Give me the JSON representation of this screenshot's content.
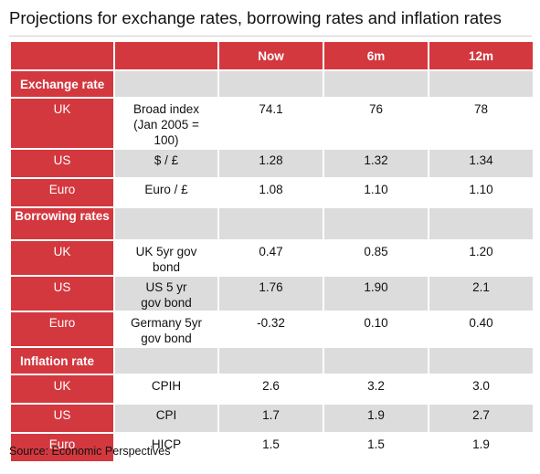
{
  "title": "Projections for exchange rates, borrowing rates and inflation rates",
  "columns": [
    "Now",
    "6m",
    "12m"
  ],
  "sections": [
    {
      "name": "Exchange rate",
      "rows": [
        {
          "country": "UK",
          "measure": "Broad index (Jan 2005 = 100)",
          "now": "74.1",
          "m6": "76",
          "m12": "78"
        },
        {
          "country": "US",
          "measure": "$ / £",
          "now": "1.28",
          "m6": "1.32",
          "m12": "1.34"
        },
        {
          "country": "Euro",
          "measure": "Euro / £",
          "now": "1.08",
          "m6": "1.10",
          "m12": "1.10"
        }
      ]
    },
    {
      "name": "Borrowing rates",
      "rows": [
        {
          "country": "UK",
          "measure": "UK 5yr gov bond",
          "now": "0.47",
          "m6": "0.85",
          "m12": "1.20"
        },
        {
          "country": "US",
          "measure": "US 5 yr gov bond",
          "now": "1.76",
          "m6": "1.90",
          "m12": "2.1"
        },
        {
          "country": "Euro",
          "measure": "Germany 5yr gov bond",
          "now": "-0.32",
          "m6": "0.10",
          "m12": "0.40"
        }
      ]
    },
    {
      "name": "Inflation rate",
      "rows": [
        {
          "country": "UK",
          "measure": "CPIH",
          "now": "2.6",
          "m6": "3.2",
          "m12": "3.0"
        },
        {
          "country": "US",
          "measure": "CPI",
          "now": "1.7",
          "m6": "1.9",
          "m12": "2.7"
        },
        {
          "country": "Euro",
          "measure": "HICP",
          "now": "1.5",
          "m6": "1.5",
          "m12": "1.9"
        }
      ]
    }
  ],
  "source": "Source: Economic Perspectives",
  "colors": {
    "header_red": "#d3383f",
    "cell_grey": "#dcdcdc"
  }
}
